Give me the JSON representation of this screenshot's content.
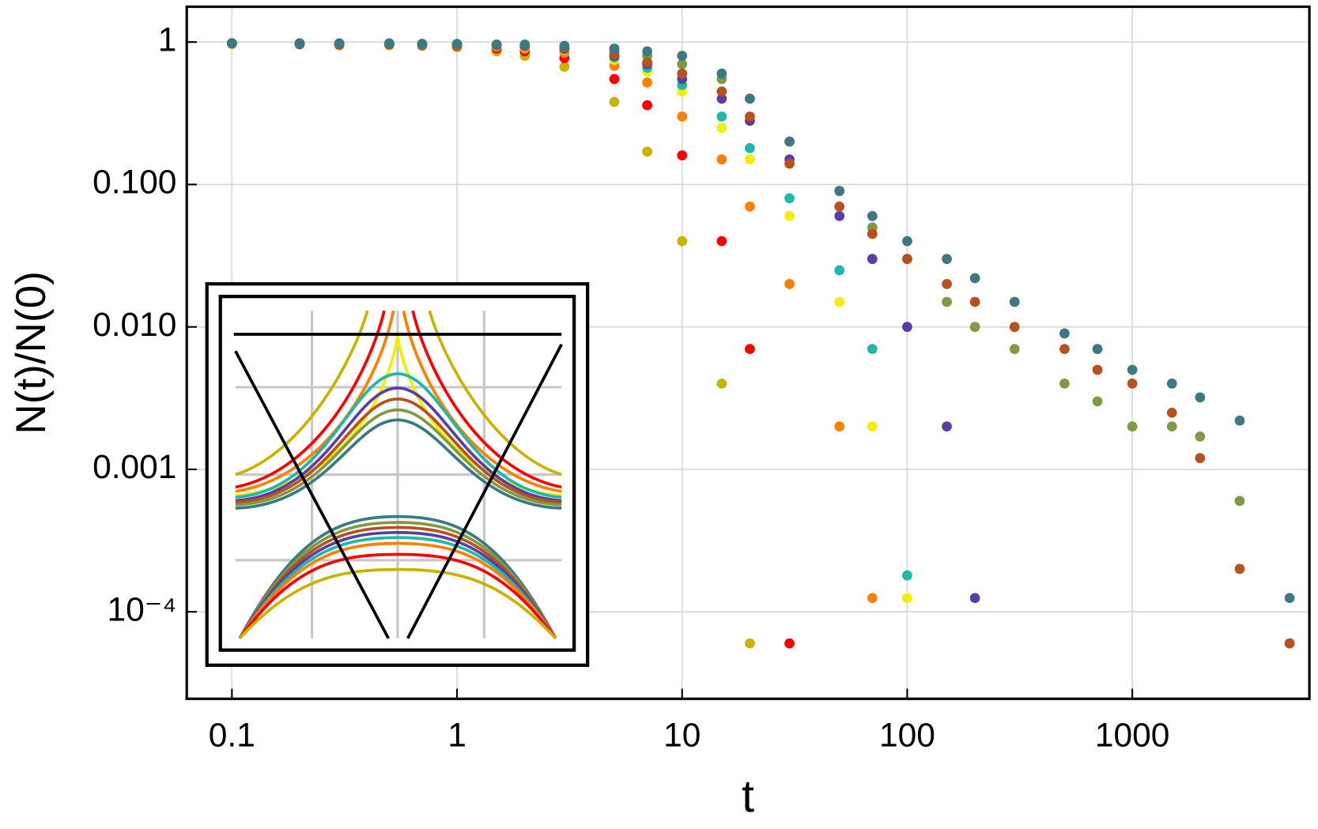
{
  "chart_data": {
    "type": "scatter",
    "xlabel": "t",
    "ylabel": "N(t)/N(0)",
    "xlog": true,
    "ylog": true,
    "grid": true,
    "xlim": [
      0.063,
      6120
    ],
    "ylim": [
      2.45e-05,
      1.77
    ],
    "xticks": [
      0.1,
      1,
      10,
      100,
      1000
    ],
    "yticks": [
      1,
      {
        "value": 0.1,
        "label": "0.100"
      },
      {
        "value": 0.01,
        "label": "0.010"
      },
      {
        "value": 0.001,
        "label": "0.001"
      },
      {
        "value": 0.0001,
        "label": "10⁻⁴"
      }
    ],
    "x": [
      0.1,
      0.2,
      0.3,
      0.5,
      0.7,
      1,
      1.5,
      2,
      3,
      5,
      7,
      10,
      15,
      20,
      30,
      50,
      70,
      100,
      150,
      200,
      300,
      500,
      700,
      1000,
      1500,
      2000,
      3000,
      5000
    ],
    "series": [
      {
        "color": "#c8b400",
        "values": [
          0.97,
          0.96,
          0.95,
          0.95,
          0.94,
          0.92,
          0.86,
          0.8,
          0.67,
          0.38,
          0.17,
          0.04,
          0.004,
          6e-05,
          null,
          null,
          null,
          null,
          null,
          null,
          null,
          null,
          null,
          null,
          null,
          null,
          null,
          null
        ]
      },
      {
        "color": "#ff0000",
        "values": [
          0.98,
          0.97,
          0.96,
          0.96,
          0.95,
          0.94,
          0.9,
          0.86,
          0.77,
          0.55,
          0.36,
          0.16,
          0.04,
          0.007,
          6e-05,
          null,
          null,
          null,
          null,
          null,
          null,
          null,
          null,
          null,
          null,
          null,
          null,
          null
        ]
      },
      {
        "color": "#ff8000",
        "values": [
          0.98,
          0.97,
          0.97,
          0.96,
          0.96,
          0.95,
          0.93,
          0.9,
          0.84,
          0.68,
          0.52,
          0.3,
          0.15,
          0.07,
          0.02,
          0.002,
          0.000125,
          null,
          null,
          null,
          null,
          null,
          null,
          null,
          null,
          null,
          null,
          null
        ]
      },
      {
        "color": "#f0f000",
        "values": [
          0.98,
          0.97,
          0.97,
          0.97,
          0.96,
          0.96,
          0.94,
          0.92,
          0.88,
          0.75,
          0.62,
          0.45,
          0.25,
          0.15,
          0.06,
          0.015,
          0.002,
          0.000125,
          null,
          null,
          null,
          null,
          null,
          null,
          null,
          null,
          null,
          null
        ]
      },
      {
        "color": "#20b8a8",
        "values": [
          0.98,
          0.97,
          0.97,
          0.97,
          0.96,
          0.96,
          0.95,
          0.93,
          0.89,
          0.78,
          0.66,
          0.5,
          0.3,
          0.18,
          0.08,
          0.025,
          0.007,
          0.00018,
          null,
          null,
          null,
          null,
          null,
          null,
          null,
          null,
          null,
          null
        ]
      },
      {
        "color": "#5a3ea8",
        "values": [
          0.98,
          0.97,
          0.97,
          0.97,
          0.97,
          0.96,
          0.95,
          0.94,
          0.9,
          0.8,
          0.7,
          0.55,
          0.4,
          0.28,
          0.15,
          0.06,
          0.03,
          0.01,
          0.002,
          0.000125,
          null,
          null,
          null,
          null,
          null,
          null,
          null,
          null
        ]
      },
      {
        "color": "#7f9a40",
        "values": [
          0.98,
          0.98,
          0.97,
          0.97,
          0.97,
          0.97,
          0.96,
          0.95,
          0.93,
          0.87,
          0.8,
          0.7,
          0.55,
          0.4,
          0.2,
          0.09,
          0.05,
          0.03,
          0.015,
          0.01,
          0.007,
          0.004,
          0.003,
          0.002,
          0.002,
          0.0017,
          0.0006,
          6e-05
        ]
      },
      {
        "color": "#b85020",
        "values": [
          0.98,
          0.98,
          0.97,
          0.97,
          0.97,
          0.96,
          0.95,
          0.94,
          0.91,
          0.82,
          0.72,
          0.6,
          0.45,
          0.3,
          0.14,
          0.07,
          0.045,
          0.03,
          0.02,
          0.015,
          0.01,
          0.007,
          0.005,
          0.004,
          0.0025,
          0.0012,
          0.0002,
          6e-05
        ]
      },
      {
        "color": "#3a7a80",
        "values": [
          0.98,
          0.98,
          0.98,
          0.98,
          0.97,
          0.97,
          0.96,
          0.96,
          0.94,
          0.9,
          0.86,
          0.8,
          0.6,
          0.4,
          0.2,
          0.09,
          0.06,
          0.04,
          0.03,
          0.022,
          0.015,
          0.009,
          0.007,
          0.005,
          0.004,
          0.0032,
          0.0022,
          0.000125
        ]
      }
    ]
  }
}
